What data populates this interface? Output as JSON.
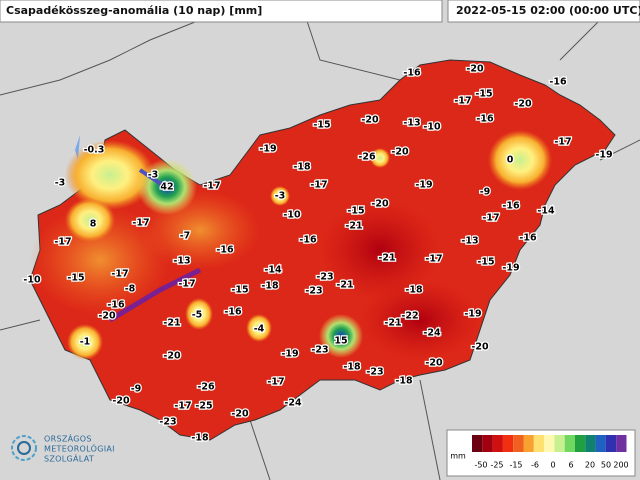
{
  "header": {
    "title": "Csapadékösszeg-anomália (10 nap) [mm]",
    "timestamp": "2022-05-15 02:00 (00:00 UTC)"
  },
  "stations": [
    -16,
    -20,
    -16,
    -17,
    -15,
    -20,
    -16,
    -20,
    -13,
    -10,
    -15,
    -17,
    -19,
    -19,
    -26,
    -20,
    0,
    -18,
    -17,
    -3,
    -17,
    -19,
    -9,
    -0.3,
    -3,
    -3,
    42,
    8,
    -17,
    -10,
    -15,
    -20,
    -16,
    -14,
    -17,
    -21,
    -7,
    -16,
    -16,
    -13,
    -16,
    -17,
    -10,
    -15,
    -17,
    -13,
    -21,
    -17,
    -15,
    -19,
    -14,
    -17,
    -23,
    -21,
    -15,
    -18,
    -23,
    -18,
    -8,
    -16,
    -20,
    -21,
    -5,
    -16,
    -4,
    -22,
    -19,
    -21,
    -24,
    -1,
    15,
    -19,
    -23,
    -20,
    -20,
    -18,
    -23,
    -20,
    -18,
    -17,
    -9,
    -26,
    -20,
    -24,
    -17,
    -25,
    -20,
    -23,
    -18
  ],
  "legend": {
    "unit": "mm",
    "ticks": [
      -50,
      -25,
      -15,
      -6,
      0,
      6,
      20,
      50,
      200
    ]
  },
  "logo": {
    "lines": [
      "ORSZÁGOS",
      "METEOROLÓGIAI",
      "SZOLGÁLAT"
    ]
  }
}
